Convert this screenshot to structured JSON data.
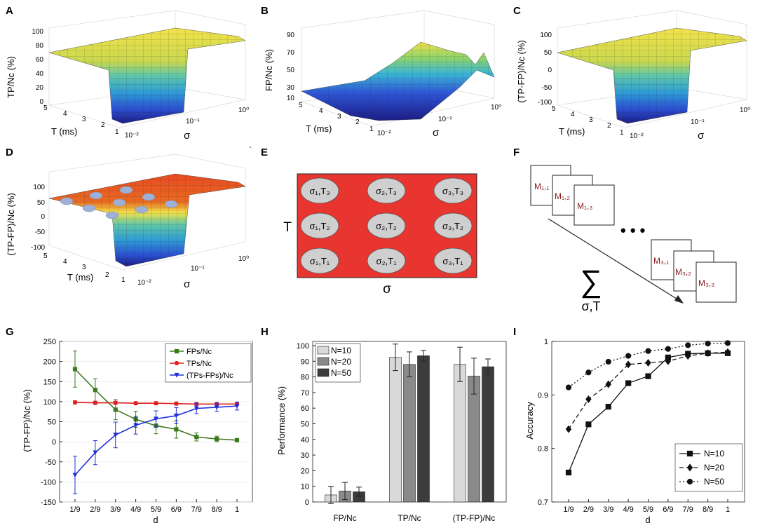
{
  "figure": {
    "panel_letters": [
      "A",
      "B",
      "C",
      "D",
      "E",
      "F",
      "G",
      "H",
      "I"
    ],
    "tick_marker": "`"
  },
  "surface_panels": [
    {
      "letter": "A",
      "zlabel": "TP/Nᴄ (%)",
      "zticks": [
        "100",
        "80",
        "60",
        "40",
        "20",
        "0"
      ],
      "tticks": [
        "5",
        "4",
        "3",
        "2",
        "1"
      ],
      "sticks": [
        "10⁻²",
        "10⁻¹",
        "10⁰"
      ],
      "xlabel": "T (ms)",
      "ylabel": "σ"
    },
    {
      "letter": "B",
      "zlabel": "FP/Nᴄ (%)",
      "zticks": [
        "90",
        "70",
        "50",
        "30",
        "10"
      ],
      "tticks": [
        "5",
        "4",
        "3",
        "2",
        "1"
      ],
      "sticks": [
        "10⁻²",
        "10⁻¹",
        "10⁰"
      ],
      "xlabel": "T (ms)",
      "ylabel": "σ"
    },
    {
      "letter": "C",
      "zlabel": "(TP-FP)/Nᴄ (%)",
      "zticks": [
        "100",
        "50",
        "0",
        "-50",
        "-100"
      ],
      "tticks": [
        "5",
        "4",
        "3",
        "2",
        "1"
      ],
      "sticks": [
        "10⁻²",
        "10⁻¹",
        "10⁰"
      ],
      "xlabel": "T (ms)",
      "ylabel": "σ"
    },
    {
      "letter": "D",
      "zlabel": "(TP-FP)/Nᴄ (%)",
      "zticks": [
        "100",
        "50",
        "0",
        "-50",
        "-100"
      ],
      "tticks": [
        "5",
        "4",
        "3",
        "2",
        "1"
      ],
      "sticks": [
        "10⁻²",
        "10⁻¹",
        "10⁰"
      ],
      "xlabel": "T (ms)",
      "ylabel": "σ"
    }
  ],
  "grid_panel": {
    "letter": "E",
    "cells": [
      [
        "σ₁,T₃",
        "σ₂,T₃",
        "σ₃,T₃"
      ],
      [
        "σ₁,T₂",
        "σ₂,T₂",
        "σ₃,T₂"
      ],
      [
        "σ₁,T₁",
        "σ₂,T₁",
        "σ₃,T₁"
      ]
    ],
    "ylabel": "T",
    "xlabel": "σ",
    "colors": {
      "background": "#e8352f",
      "ellipse": "#cfcfcf"
    }
  },
  "sum_panel": {
    "letter": "F",
    "top_boxes": [
      "M₁,₁",
      "M₁,₂",
      "M₁,₃"
    ],
    "bottom_boxes": [
      "M₃,₁",
      "M₃,₂",
      "M₃,₃"
    ],
    "dots": "• • •",
    "sigma": "∑",
    "sigma_sub": "σ,T",
    "label_color": "#8b1a1a"
  },
  "chart_data": [
    {
      "panel": "G",
      "type": "line",
      "x": [
        "1/9",
        "2/9",
        "3/9",
        "4/9",
        "5/9",
        "6/9",
        "7/9",
        "8/9",
        "1"
      ],
      "xlabel": "d",
      "ylabel": "(TP-FP)/Nᴄ (%)",
      "ylim": [
        -150,
        250
      ],
      "yticks": [
        -150,
        -100,
        -50,
        0,
        50,
        100,
        150,
        200,
        250
      ],
      "legend_position": "top-right",
      "series": [
        {
          "name": "FPs/Nᴄ",
          "color": "#3d7a1f",
          "marker": "square",
          "values": [
            181,
            129,
            80,
            56,
            40,
            31,
            12,
            7,
            4
          ],
          "errors": [
            45,
            28,
            25,
            20,
            20,
            22,
            10,
            7,
            4
          ]
        },
        {
          "name": "TPs/Nᴄ",
          "color": "#e02020",
          "marker": "circle",
          "values": [
            98,
            97,
            97,
            96,
            96,
            95,
            94,
            94,
            94
          ],
          "errors": [
            4,
            4,
            4,
            4,
            4,
            4,
            4,
            4,
            4
          ]
        },
        {
          "name": "(TPs-FPs)/Nᴄ",
          "color": "#1f2fd8",
          "marker": "triangle",
          "values": [
            -83,
            -27,
            17,
            41,
            57,
            65,
            83,
            86,
            89
          ],
          "errors": [
            47,
            30,
            32,
            22,
            20,
            20,
            13,
            10,
            10
          ]
        }
      ]
    },
    {
      "panel": "H",
      "type": "bar",
      "categories": [
        "FP/Nᴄ",
        "TP/Nᴄ",
        "(TP-FP)/Nᴄ"
      ],
      "ylabel": "Performance (%)",
      "ylim": [
        0,
        100
      ],
      "yticks": [
        0,
        10,
        20,
        30,
        40,
        50,
        60,
        70,
        80,
        90,
        100
      ],
      "legend_position": "top-left",
      "series": [
        {
          "name": "N=10",
          "color": "#d9d9d9",
          "values": [
            4.5,
            92.5,
            88
          ],
          "errors": [
            5.5,
            8.5,
            11
          ]
        },
        {
          "name": "N=20",
          "color": "#8a8a8a",
          "values": [
            7,
            88,
            80.5
          ],
          "errors": [
            5.5,
            8,
            11.5
          ]
        },
        {
          "name": "N=50",
          "color": "#3c3c3c",
          "values": [
            6.5,
            93.5,
            86.5
          ],
          "errors": [
            3,
            3.5,
            5
          ]
        }
      ]
    },
    {
      "panel": "I",
      "type": "line",
      "x": [
        "1/9",
        "2/9",
        "3/9",
        "4/9",
        "5/9",
        "6/9",
        "7/9",
        "8/9",
        "1"
      ],
      "xlabel": "d",
      "ylabel": "Accuracy",
      "ylim": [
        0.7,
        1.0
      ],
      "yticks": [
        0.7,
        0.8,
        0.9,
        1
      ],
      "ytick_labels": [
        "0.7",
        "0.8",
        "0.9",
        "1"
      ],
      "legend_position": "bottom-right",
      "series": [
        {
          "name": "N=10",
          "marker": "square",
          "dash": "none",
          "values": [
            0.755,
            0.845,
            0.878,
            0.922,
            0.935,
            0.97,
            0.977,
            0.978,
            0.978
          ]
        },
        {
          "name": "N=20",
          "marker": "diamond",
          "dash": "6,4",
          "values": [
            0.836,
            0.892,
            0.92,
            0.957,
            0.96,
            0.963,
            0.973,
            0.978,
            0.98
          ]
        },
        {
          "name": "N=50",
          "marker": "circle",
          "dash": "2,3",
          "values": [
            0.914,
            0.942,
            0.962,
            0.973,
            0.982,
            0.986,
            0.993,
            0.996,
            0.997
          ]
        }
      ]
    }
  ]
}
